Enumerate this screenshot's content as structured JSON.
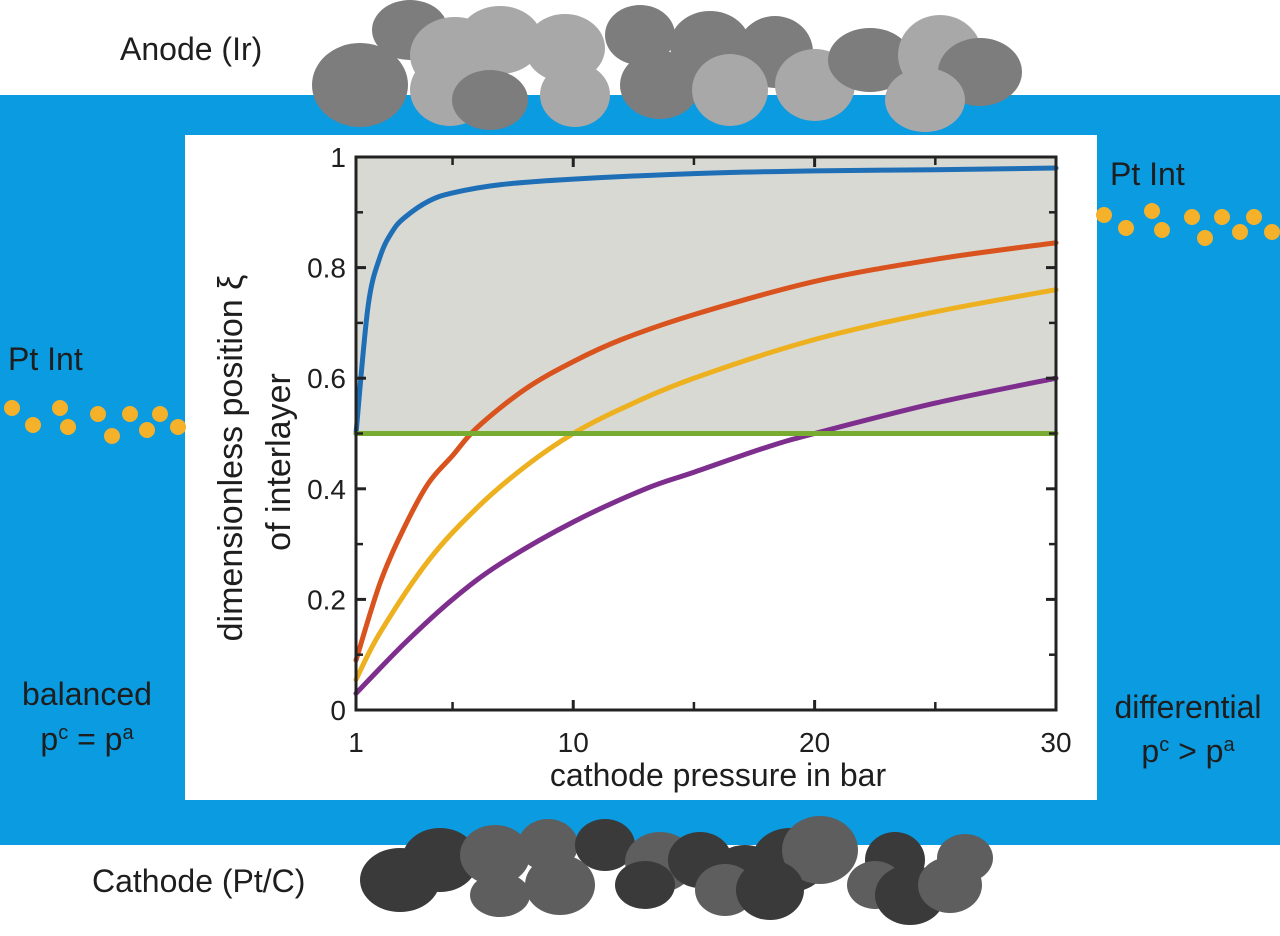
{
  "colors": {
    "membrane": "#0a9be0",
    "region_fill": "#d9d9d4",
    "pt_dots": "#f5b12a",
    "anode_particles": [
      "#7d7d7d",
      "#a8a8a8"
    ],
    "cathode_particles": [
      "#3a3a3a",
      "#5e5e5e"
    ]
  },
  "labels": {
    "anode": "Anode (Ir)",
    "cathode": "Cathode (Pt/C)",
    "pt_int_left": "Pt Int",
    "pt_int_right": "Pt Int",
    "balanced_title": "balanced",
    "balanced_eq": "pc = pa",
    "differential_title": "differential",
    "differential_eq": "pc > pa"
  },
  "chart_data": {
    "type": "line",
    "title": "",
    "xlabel": "cathode pressure in bar",
    "ylabel_line1": "dimensionless position ξ",
    "ylabel_line2": "of interlayer",
    "xlim": [
      1,
      30
    ],
    "ylim": [
      0,
      1
    ],
    "xticks": [
      1,
      10,
      20,
      30
    ],
    "xtick_labels": [
      "1",
      "10",
      "20",
      "30"
    ],
    "yticks": [
      0,
      0.2,
      0.4,
      0.6,
      0.8,
      1
    ],
    "ytick_labels": [
      "0",
      "0.2",
      "0.4",
      "0.6",
      "0.8",
      "1"
    ],
    "shaded_region": {
      "y_from": 0.5,
      "y_to": 1,
      "color": "#d9d9d4"
    },
    "series": [
      {
        "name": "blue",
        "color": "#1f6fb6",
        "x": [
          1,
          1.5,
          2,
          2.5,
          3,
          4,
          5,
          7,
          10,
          15,
          20,
          25,
          30
        ],
        "values": [
          0.5,
          0.73,
          0.82,
          0.865,
          0.89,
          0.92,
          0.935,
          0.95,
          0.96,
          0.97,
          0.975,
          0.977,
          0.98
        ]
      },
      {
        "name": "orange",
        "color": "#d9531e",
        "x": [
          1,
          2,
          3,
          4,
          5,
          6,
          8,
          10,
          12,
          15,
          20,
          25,
          30
        ],
        "values": [
          0.09,
          0.23,
          0.33,
          0.41,
          0.46,
          0.51,
          0.58,
          0.63,
          0.67,
          0.715,
          0.775,
          0.815,
          0.845
        ]
      },
      {
        "name": "yellow",
        "color": "#edb120",
        "x": [
          1,
          2,
          4,
          6,
          8,
          10,
          12,
          15,
          20,
          25,
          30
        ],
        "values": [
          0.055,
          0.14,
          0.27,
          0.365,
          0.44,
          0.5,
          0.545,
          0.6,
          0.67,
          0.72,
          0.76
        ]
      },
      {
        "name": "purple",
        "color": "#7e2f8e",
        "x": [
          1,
          3,
          5,
          7,
          10,
          13,
          15,
          18,
          20,
          25,
          30
        ],
        "values": [
          0.03,
          0.12,
          0.2,
          0.265,
          0.34,
          0.4,
          0.43,
          0.475,
          0.5,
          0.555,
          0.6
        ]
      },
      {
        "name": "green",
        "color": "#77ac30",
        "x": [
          1,
          30
        ],
        "values": [
          0.5,
          0.5
        ]
      }
    ]
  }
}
